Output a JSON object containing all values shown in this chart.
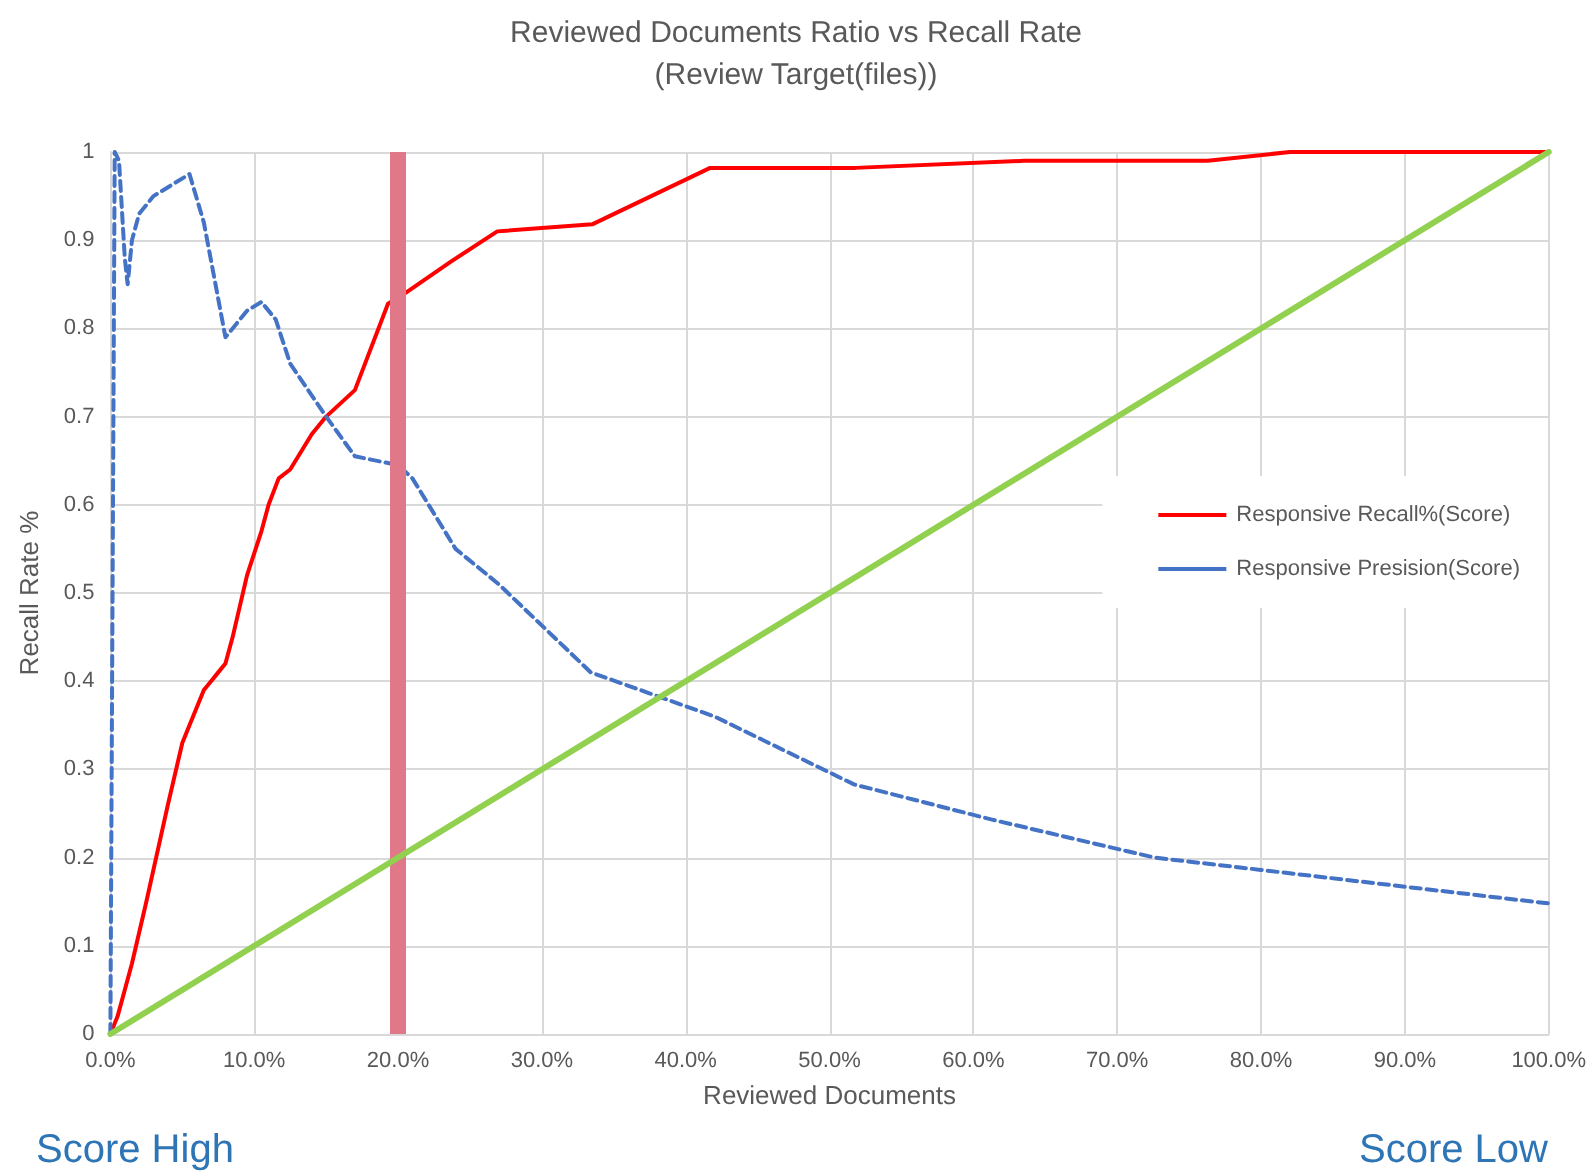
{
  "chart_data": {
    "type": "line",
    "title": "Reviewed Documents Ratio vs Recall Rate",
    "subtitle": "(Review Target(files))",
    "xlabel": "Reviewed Documents",
    "ylabel": "Recall Rate %",
    "annotations": [
      "Score High",
      "Score Low"
    ],
    "series": [
      {
        "name": "Responsive Recall%(Score)",
        "color": "#ff0000",
        "line_style": "solid",
        "x": [
          0,
          0.5,
          1,
          1.5,
          2.5,
          4,
          5,
          5.5,
          6.5,
          7,
          7.5,
          8,
          8.5,
          9.5,
          10.5,
          11,
          11.7,
          12.5,
          14,
          15,
          17,
          19.3,
          20.5,
          23.7,
          26.9,
          33.5,
          41.7,
          51.8,
          63.5,
          76.3,
          82,
          100
        ],
        "values": [
          0,
          0.02,
          0.05,
          0.08,
          0.15,
          0.26,
          0.33,
          0.35,
          0.39,
          0.4,
          0.41,
          0.42,
          0.45,
          0.52,
          0.57,
          0.6,
          0.63,
          0.64,
          0.68,
          0.7,
          0.73,
          0.828,
          0.84,
          0.876,
          0.91,
          0.918,
          0.982,
          0.982,
          0.99,
          0.99,
          1,
          1
        ]
      },
      {
        "name": "Responsive Presision(Score)",
        "color": "#4472c4",
        "line_style": "dashed",
        "x": [
          0,
          0.3,
          0.6,
          1,
          1.2,
          1.5,
          2,
          3,
          5.5,
          6.5,
          8,
          9.5,
          10.5,
          11.5,
          12.5,
          15,
          17,
          20,
          21,
          24,
          27,
          33.4,
          42,
          51.7,
          61.3,
          72.6,
          80,
          90,
          100
        ],
        "values": [
          0,
          1,
          0.99,
          0.88,
          0.85,
          0.9,
          0.93,
          0.95,
          0.975,
          0.92,
          0.79,
          0.82,
          0.83,
          0.81,
          0.76,
          0.7,
          0.655,
          0.645,
          0.63,
          0.55,
          0.51,
          0.41,
          0.36,
          0.283,
          0.243,
          0.2,
          0.186,
          0.167,
          0.148
        ]
      },
      {
        "color": "#92d050",
        "line_style": "solid",
        "x": [
          0,
          100
        ],
        "values": [
          0,
          1
        ]
      }
    ],
    "ref_lines": [
      {
        "axis": "x",
        "value": 20,
        "color": "#e0788a"
      }
    ],
    "xlim": [
      0,
      100
    ],
    "xticks": [
      {
        "value": 0,
        "label": "0.0%"
      },
      {
        "value": 10,
        "label": "10.0%"
      },
      {
        "value": 20,
        "label": "20.0%"
      },
      {
        "value": 30,
        "label": "30.0%"
      },
      {
        "value": 40,
        "label": "40.0%"
      },
      {
        "value": 50,
        "label": "50.0%"
      },
      {
        "value": 60,
        "label": "60.0%"
      },
      {
        "value": 70,
        "label": "70.0%"
      },
      {
        "value": 80,
        "label": "80.0%"
      },
      {
        "value": 90,
        "label": "90.0%"
      },
      {
        "value": 100,
        "label": "100.0%"
      }
    ],
    "ylim": [
      0,
      1
    ],
    "yticks": [
      0,
      0.1,
      0.2,
      0.3,
      0.4,
      0.5,
      0.6,
      0.7,
      0.8,
      0.9,
      1
    ],
    "grid": true,
    "legend": "right",
    "marker": "none"
  }
}
